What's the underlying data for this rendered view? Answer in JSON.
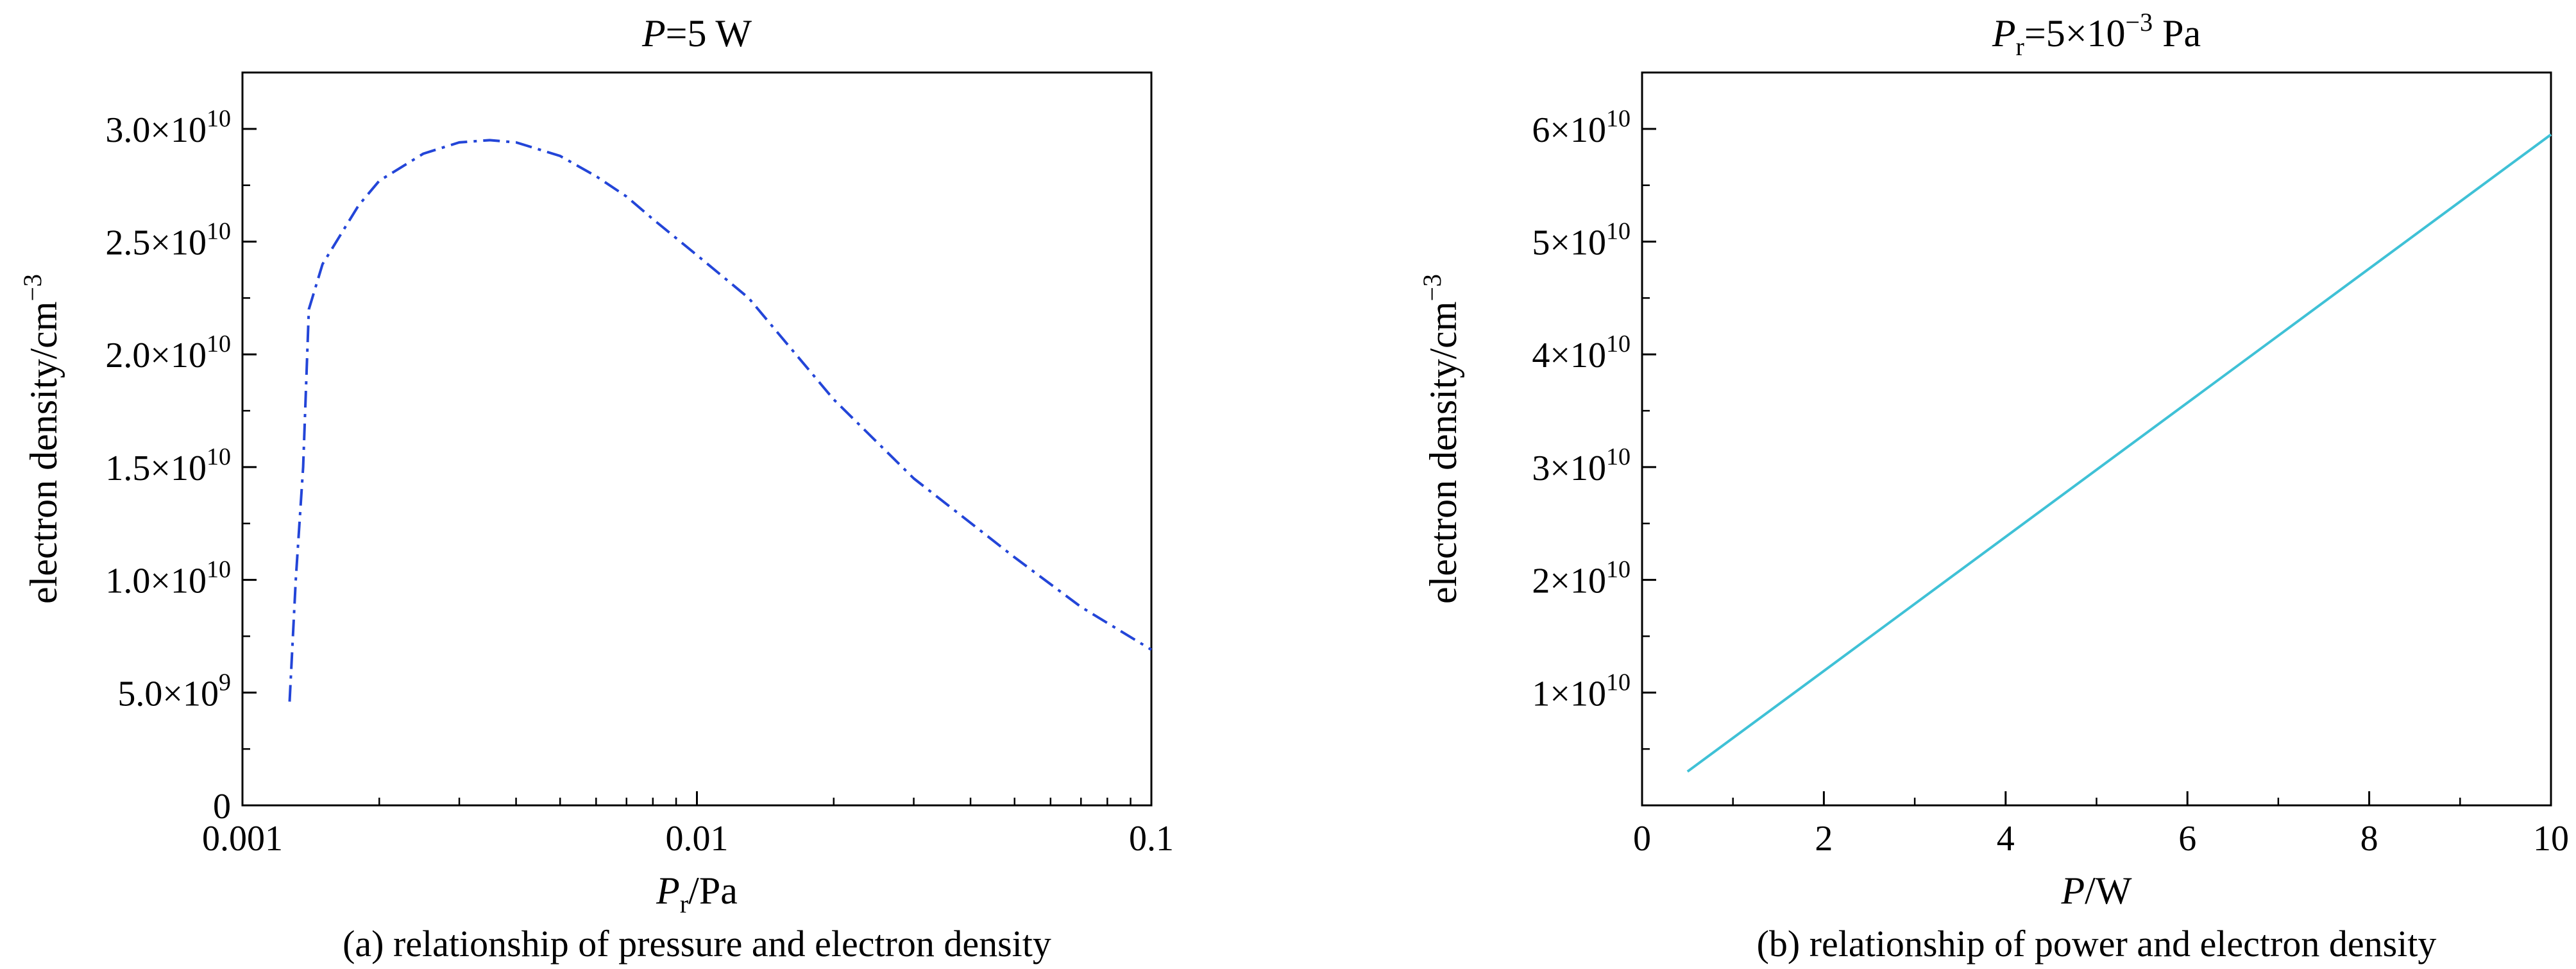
{
  "chart_data": [
    {
      "type": "line",
      "title": "P=5 W",
      "title_italic_part": "P",
      "title_rest": "=5 W",
      "caption": "(a) relationship of pressure and electron density",
      "xlabel": "Pr/Pa",
      "xlabel_main": "P",
      "xlabel_sub": "r",
      "xlabel_rest": "/Pa",
      "ylabel": "electron density/cm−3",
      "ylabel_main": "electron density/cm",
      "ylabel_sup": "−3",
      "x_scale": "log",
      "xlim": [
        0.001,
        0.1
      ],
      "ylim": [
        0,
        32500000000.0
      ],
      "x_ticks": [
        {
          "value": 0.001,
          "label": "0.001"
        },
        {
          "value": 0.01,
          "label": "0.01"
        },
        {
          "value": 0.1,
          "label": "0.1"
        }
      ],
      "y_ticks": [
        {
          "value": 0,
          "label": "0"
        },
        {
          "value": 5000000000.0,
          "label": "5.0×10",
          "exp": "9"
        },
        {
          "value": 10000000000.0,
          "label": "1.0×10",
          "exp": "10"
        },
        {
          "value": 15000000000.0,
          "label": "1.5×10",
          "exp": "10"
        },
        {
          "value": 20000000000.0,
          "label": "2.0×10",
          "exp": "10"
        },
        {
          "value": 25000000000.0,
          "label": "2.5×10",
          "exp": "10"
        },
        {
          "value": 30000000000.0,
          "label": "3.0×10",
          "exp": "10"
        }
      ],
      "grid": false,
      "series": [
        {
          "color": "#2345d8",
          "dash": "dash-dot",
          "x": [
            0.00127,
            0.00131,
            0.00136,
            0.0014,
            0.0015,
            0.0018,
            0.002,
            0.0025,
            0.003,
            0.0035,
            0.004,
            0.005,
            0.006,
            0.007,
            0.008,
            0.01,
            0.013,
            0.015,
            0.02,
            0.03,
            0.05,
            0.07,
            0.1
          ],
          "y": [
            4600000000.0,
            10000000000.0,
            15000000000.0,
            22000000000.0,
            24000000000.0,
            26600000000.0,
            27700000000.0,
            28900000000.0,
            29400000000.0,
            29500000000.0,
            29400000000.0,
            28800000000.0,
            27900000000.0,
            27000000000.0,
            26000000000.0,
            24400000000.0,
            22500000000.0,
            21000000000.0,
            18000000000.0,
            14500000000.0,
            11000000000.0,
            8800000000.0,
            6900000000.0
          ]
        }
      ]
    },
    {
      "type": "line",
      "title": "Pr=5×10−3 Pa",
      "title_italic_part": "P",
      "title_sub": "r",
      "title_rest": "=5×10",
      "title_sup": "−3",
      "title_tail": " Pa",
      "caption": "(b) relationship of power and electron density",
      "xlabel": "P/W",
      "xlabel_main": "P",
      "xlabel_rest": "/W",
      "ylabel": "electron density/cm−3",
      "ylabel_main": "electron density/cm",
      "ylabel_sup": "−3",
      "x_scale": "linear",
      "xlim": [
        0,
        10
      ],
      "ylim": [
        0,
        65000000000.0
      ],
      "x_ticks": [
        {
          "value": 0,
          "label": "0"
        },
        {
          "value": 2,
          "label": "2"
        },
        {
          "value": 4,
          "label": "4"
        },
        {
          "value": 6,
          "label": "6"
        },
        {
          "value": 8,
          "label": "8"
        },
        {
          "value": 10,
          "label": "10"
        }
      ],
      "y_ticks": [
        {
          "value": 10000000000.0,
          "label": "1×10",
          "exp": "10"
        },
        {
          "value": 20000000000.0,
          "label": "2×10",
          "exp": "10"
        },
        {
          "value": 30000000000.0,
          "label": "3×10",
          "exp": "10"
        },
        {
          "value": 40000000000.0,
          "label": "4×10",
          "exp": "10"
        },
        {
          "value": 50000000000.0,
          "label": "5×10",
          "exp": "10"
        },
        {
          "value": 60000000000.0,
          "label": "6×10",
          "exp": "10"
        }
      ],
      "grid": false,
      "series": [
        {
          "color": "#3fc1d6",
          "dash": "solid",
          "x": [
            0.5,
            10
          ],
          "y": [
            3000000000.0,
            59500000000.0
          ]
        }
      ]
    }
  ]
}
